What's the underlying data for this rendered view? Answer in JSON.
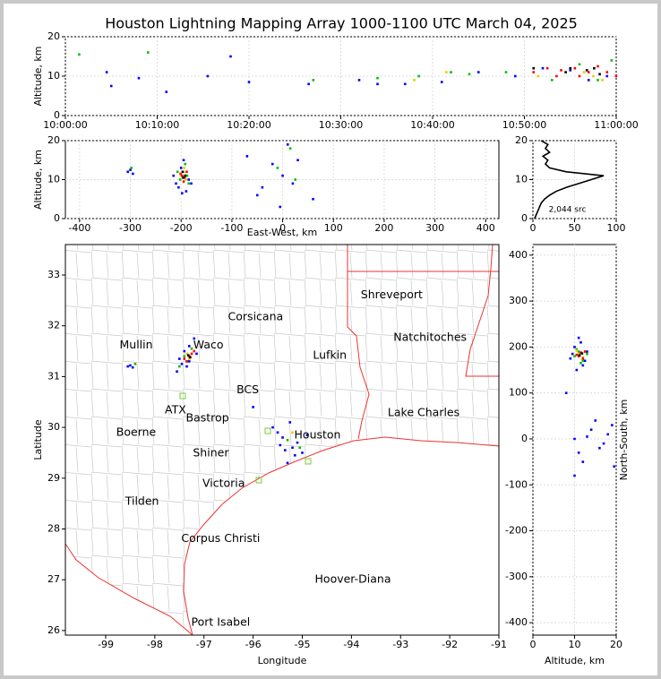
{
  "chart_data": [
    {
      "type": "scatter",
      "title": "Houston Lightning Mapping Array 1000-1100 UTC March 04, 2025",
      "ylabel": "Altitude, km",
      "xlim": [
        0,
        60
      ],
      "ylim": [
        0,
        20
      ],
      "xticks": [
        {
          "value": 0,
          "label": "10:00:00"
        },
        {
          "value": 10,
          "label": "10:10:00"
        },
        {
          "value": 20,
          "label": "10:20:00"
        },
        {
          "value": 30,
          "label": "10:30:00"
        },
        {
          "value": 40,
          "label": "10:40:00"
        },
        {
          "value": 50,
          "label": "10:50:00"
        },
        {
          "value": 60,
          "label": "11:00:00"
        }
      ],
      "yticks": [
        0,
        10,
        20
      ],
      "grid": true,
      "series": [
        {
          "color": "#0000ff",
          "x": [
            4.5,
            5,
            8,
            11,
            15.5,
            18,
            20,
            26.5,
            32,
            34,
            37,
            41,
            45,
            49,
            52,
            55,
            57,
            59
          ],
          "values": [
            11,
            7.5,
            9.5,
            6,
            10,
            15,
            8.5,
            8,
            9,
            8,
            8,
            8.5,
            11,
            10,
            12,
            11.5,
            9,
            10
          ]
        },
        {
          "color": "#00c000",
          "x": [
            1.5,
            9,
            27,
            34,
            38.5,
            42,
            44,
            48,
            51,
            53,
            56,
            58,
            59.5
          ],
          "values": [
            15.5,
            16,
            9,
            9.5,
            10,
            11,
            10.5,
            11,
            12,
            9,
            13,
            9,
            14
          ]
        },
        {
          "color": "#e0d000",
          "x": [
            38,
            41.5,
            51.5,
            55,
            56.5,
            57.5,
            58.5
          ],
          "values": [
            9,
            11,
            10,
            12,
            11,
            10,
            9
          ]
        },
        {
          "color": "#ff0000",
          "x": [
            51,
            52.5,
            53.5,
            54,
            55.5,
            56,
            57,
            58,
            59,
            60
          ],
          "values": [
            11,
            12,
            10,
            11.5,
            12,
            10,
            11,
            12.5,
            11,
            10
          ]
        },
        {
          "color": "#000000",
          "x": [
            51,
            54.5,
            55,
            56.8,
            57.6,
            58.2
          ],
          "values": [
            12,
            11,
            12,
            11.5,
            12,
            10.5
          ]
        }
      ]
    },
    {
      "type": "scatter",
      "xlabel": "East-West, km",
      "ylabel": "Altitude, km",
      "xlim": [
        -428,
        426
      ],
      "ylim": [
        0,
        20
      ],
      "xticks": [
        -400,
        -300,
        -200,
        -100,
        0,
        100,
        200,
        300,
        400
      ],
      "yticks": [
        0,
        10,
        20
      ],
      "grid": true,
      "series": [
        {
          "color": "#0000ff",
          "x": [
            -305,
            -300,
            -295,
            -210,
            -205,
            -200,
            -195,
            -190,
            -185,
            -180,
            -215,
            -198,
            -70,
            -40,
            -20,
            0,
            10,
            20,
            30,
            -50,
            -5,
            60
          ],
          "values": [
            12,
            12.5,
            11.5,
            9,
            8,
            13,
            15,
            7,
            10,
            9,
            11,
            6.5,
            16,
            8,
            14,
            11,
            19,
            9,
            15,
            6,
            3,
            5
          ]
        },
        {
          "color": "#00c000",
          "x": [
            -298,
            -202,
            -196,
            -188,
            -192,
            -185,
            -207,
            -10,
            15,
            25
          ],
          "values": [
            13,
            10,
            12,
            11,
            14,
            9,
            12,
            13,
            18,
            10
          ]
        },
        {
          "color": "#e0d000",
          "x": [
            -200,
            -195,
            -190,
            -194
          ],
          "values": [
            11,
            12,
            10,
            13
          ]
        },
        {
          "color": "#ff0000",
          "x": [
            -198,
            -193,
            -189,
            -195,
            -201
          ],
          "values": [
            11,
            10.5,
            12,
            9.5,
            11.5
          ]
        },
        {
          "color": "#000000",
          "x": [
            -196,
            -192,
            -197
          ],
          "values": [
            10.5,
            11,
            12
          ]
        }
      ]
    },
    {
      "type": "line",
      "xlim": [
        0,
        100
      ],
      "ylim": [
        0,
        20
      ],
      "xticks": [
        0,
        50,
        100
      ],
      "yticks": [
        0,
        10,
        20
      ],
      "grid": true,
      "annotations": [
        {
          "text": "2,044 src",
          "x": 19,
          "y": 2.3,
          "color": "#000000"
        }
      ],
      "series": [
        {
          "color": "#000000",
          "x": [
            2,
            4,
            6,
            8,
            10,
            14,
            20,
            28,
            40,
            55,
            70,
            85,
            40,
            20,
            15,
            18,
            12,
            20,
            15,
            18,
            10
          ],
          "values": [
            0,
            1,
            2,
            3,
            4,
            5,
            6,
            7,
            8,
            9,
            10,
            11,
            12,
            13,
            14,
            15,
            16,
            17,
            18,
            19,
            20
          ]
        }
      ]
    },
    {
      "type": "scatter",
      "xlabel": "Longitude",
      "ylabel": "Latitude",
      "xlim": [
        -99.82,
        -91
      ],
      "ylim": [
        25.91,
        33.6
      ],
      "xticks": [
        -99,
        -98,
        -97,
        -96,
        -95,
        -94,
        -93,
        -92,
        -91
      ],
      "yticks": [
        26,
        27,
        28,
        29,
        30,
        31,
        32,
        33
      ],
      "grid": false,
      "annotations": [
        {
          "text": "Shreveport",
          "x": -93.18,
          "y": 32.6,
          "color": "#000000"
        },
        {
          "text": "Corsicana",
          "x": -95.95,
          "y": 32.17,
          "color": "#000000"
        },
        {
          "text": "Natchitoches",
          "x": -92.4,
          "y": 31.77,
          "color": "#000000"
        },
        {
          "text": "Mullin",
          "x": -98.38,
          "y": 31.62,
          "color": "#ff8040"
        },
        {
          "text": "Waco",
          "x": -96.91,
          "y": 31.62,
          "color": "#000000"
        },
        {
          "text": "Lufkin",
          "x": -94.44,
          "y": 31.41,
          "color": "#000000"
        },
        {
          "text": "BCS",
          "x": -96.11,
          "y": 30.73,
          "color": "#000000"
        },
        {
          "text": "ATX",
          "x": -97.58,
          "y": 30.34,
          "color": "#ff8040"
        },
        {
          "text": "Bastrop",
          "x": -96.93,
          "y": 30.18,
          "color": "#000000"
        },
        {
          "text": "Lake Charles",
          "x": -92.53,
          "y": 30.28,
          "color": "#000000"
        },
        {
          "text": "Boerne",
          "x": -98.38,
          "y": 29.9,
          "color": "#000000"
        },
        {
          "text": "Houston",
          "x": -94.69,
          "y": 29.84,
          "color": "#ffa000"
        },
        {
          "text": "Shiner",
          "x": -96.86,
          "y": 29.49,
          "color": "#000000"
        },
        {
          "text": "Victoria",
          "x": -96.6,
          "y": 28.89,
          "color": "#000000"
        },
        {
          "text": "Tilden",
          "x": -98.26,
          "y": 28.54,
          "color": "#000000"
        },
        {
          "text": "Corpus Christi",
          "x": -96.66,
          "y": 27.81,
          "color": "#000000"
        },
        {
          "text": "Hoover-Diana",
          "x": -93.97,
          "y": 27.0,
          "color": "#0000dd"
        },
        {
          "text": "Port Isabel",
          "x": -96.66,
          "y": 26.16,
          "color": "#000000"
        }
      ],
      "series": [
        {
          "color": "#0000ff",
          "x": [
            -97.45,
            -97.5,
            -97.3,
            -97.2,
            -97.35,
            -97.55,
            -97.4,
            -97.15,
            -97.3,
            -98.55,
            -98.5,
            -98.45,
            -95.6,
            -95.4,
            -95.2,
            -95.0,
            -95.3,
            -95.5,
            -95.1,
            -94.9,
            -95.35,
            -95.45,
            -95.25,
            -95.15,
            -96.0
          ],
          "values": [
            31.25,
            31.35,
            31.6,
            31.75,
            31.2,
            31.1,
            31.5,
            31.45,
            31.3,
            31.2,
            31.22,
            31.18,
            30.0,
            29.8,
            29.6,
            29.5,
            29.3,
            29.9,
            29.7,
            29.85,
            29.55,
            29.65,
            30.1,
            29.45,
            30.4
          ]
        },
        {
          "color": "#00c000",
          "x": [
            -97.4,
            -97.25,
            -97.35,
            -97.5,
            -98.4,
            -95.3,
            -95.05
          ],
          "values": [
            31.4,
            31.55,
            31.3,
            31.2,
            31.25,
            29.75,
            29.6
          ]
        },
        {
          "color": "#e0d000",
          "x": [
            -97.35,
            -97.3,
            -95.2
          ],
          "values": [
            31.45,
            31.35,
            29.9
          ]
        },
        {
          "color": "#ff0000",
          "x": [
            -97.3,
            -97.25,
            -97.4,
            -97.35,
            -97.2
          ],
          "values": [
            31.4,
            31.45,
            31.35,
            31.3,
            31.5
          ]
        },
        {
          "color": "#000000",
          "x": [
            -97.32,
            -97.28
          ],
          "values": [
            31.42,
            31.38
          ]
        }
      ]
    },
    {
      "type": "scatter",
      "xlabel": "Altitude, km",
      "ylabel": "North-South, km",
      "xlim": [
        0,
        20
      ],
      "ylim": [
        -427,
        423
      ],
      "xticks": [
        0,
        10,
        20
      ],
      "yticks": [
        -400,
        -300,
        -200,
        -100,
        0,
        100,
        200,
        300,
        400
      ],
      "grid": true,
      "series": [
        {
          "color": "#0000ff",
          "x": [
            9,
            10,
            11,
            12,
            13,
            10.5,
            11.5,
            12.5,
            9.5,
            8,
            10,
            14,
            16,
            18,
            19,
            11,
            12,
            15,
            17,
            19.5,
            13,
            10
          ],
          "values": [
            175,
            200,
            220,
            160,
            190,
            150,
            210,
            170,
            185,
            100,
            0,
            20,
            -20,
            10,
            30,
            -30,
            -50,
            40,
            -10,
            -60,
            5,
            -80
          ]
        },
        {
          "color": "#00c000",
          "x": [
            10,
            11,
            12,
            13,
            11.5,
            10.5
          ],
          "values": [
            180,
            190,
            170,
            185,
            165,
            195
          ]
        },
        {
          "color": "#e0d000",
          "x": [
            11,
            12,
            10.5
          ],
          "values": [
            185,
            178,
            192
          ]
        },
        {
          "color": "#ff0000",
          "x": [
            11,
            11.5,
            12,
            10.5,
            12.5
          ],
          "values": [
            180,
            188,
            175,
            183,
            190
          ]
        },
        {
          "color": "#000000",
          "x": [
            11.2,
            11.8
          ],
          "values": [
            182,
            186
          ]
        }
      ]
    }
  ]
}
